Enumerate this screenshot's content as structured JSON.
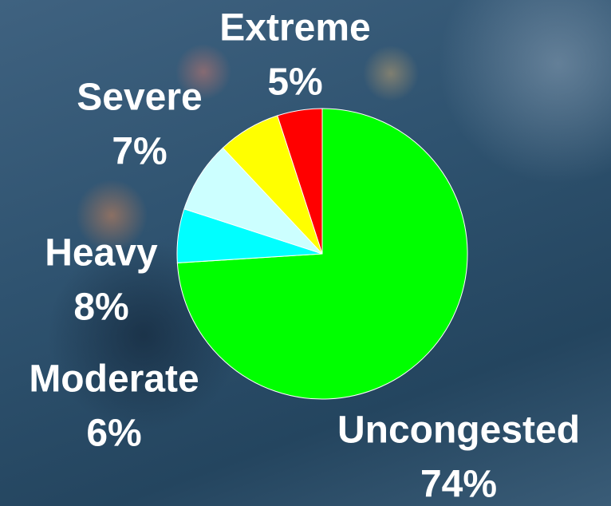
{
  "chart_data": {
    "type": "pie",
    "categories": [
      "Uncongested",
      "Moderate",
      "Heavy",
      "Severe",
      "Extreme"
    ],
    "values": [
      74,
      6,
      8,
      7,
      5
    ],
    "value_labels": [
      "74%",
      "6%",
      "8%",
      "7%",
      "5%"
    ],
    "colors": [
      "#00ff00",
      "#00ffff",
      "#ccffff",
      "#ffff00",
      "#ff0000"
    ]
  }
}
